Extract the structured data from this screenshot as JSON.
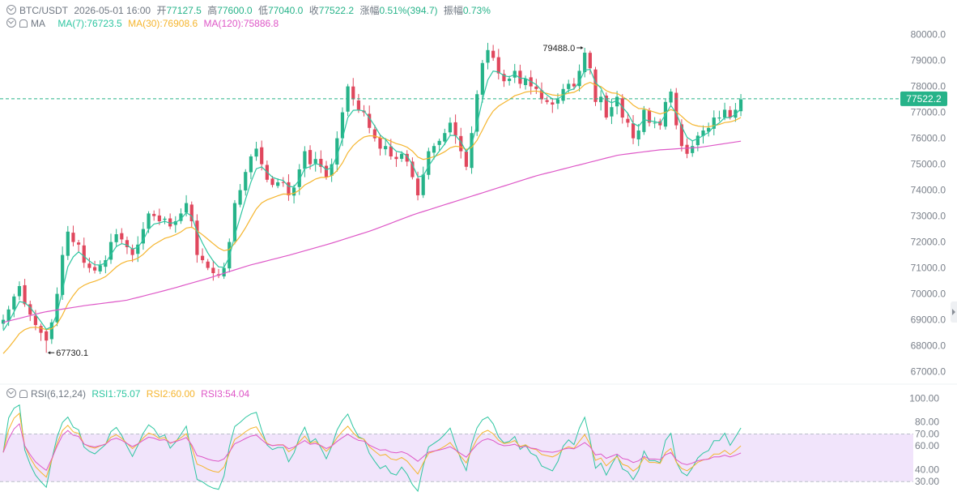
{
  "header": {
    "symbol": "BTC/USDT",
    "datetime": "2026-05-01 16:00",
    "open_label": "开",
    "open": "77127.5",
    "high_label": "高",
    "high": "77600.0",
    "low_label": "低",
    "low": "77040.0",
    "close_label": "收",
    "close": "77522.2",
    "change_label": "涨幅",
    "change": "0.51%(394.7)",
    "amplitude_label": "振幅",
    "amplitude": "0.73%"
  },
  "ma_legend": {
    "label": "MA",
    "ma7": "MA(7):76723.5",
    "ma30": "MA(30):76908.6",
    "ma120": "MA(120):75886.8"
  },
  "rsi_legend": {
    "label": "RSI(6,12,24)",
    "rsi1": "RSI1:75.07",
    "rsi2": "RSI2:60.00",
    "rsi3": "RSI3:54.04"
  },
  "colors": {
    "up": "#26b389",
    "down": "#e0475d",
    "ma7": "#2ec6a1",
    "ma30": "#f5b52e",
    "ma120": "#de57c7",
    "rsi1": "#2ec6a1",
    "rsi2": "#f5b52e",
    "rsi3": "#de57c7",
    "last_price_bg": "#26b389",
    "rsi_band": "#f1e4fb"
  },
  "chart_data": [
    {
      "type": "candlestick",
      "title": "",
      "y_ticks": [
        "80000.0",
        "79000.0",
        "78000.0",
        "77000.0",
        "76000.0",
        "75000.0",
        "74000.0",
        "73000.0",
        "72000.0",
        "71000.0",
        "70000.0",
        "69000.0",
        "68000.0",
        "67000.0"
      ],
      "ylim": [
        66800,
        80300
      ],
      "last_price": 77522.2,
      "last_price_label": "77522.2",
      "max_annotation": {
        "value": 79488.0,
        "label": "79488.0",
        "index": 108
      },
      "min_annotation": {
        "value": 67730.1,
        "label": "67730.1",
        "index": 8
      },
      "close": [
        69000,
        69400,
        69900,
        70300,
        69600,
        69200,
        68800,
        68500,
        68200,
        68900,
        70000,
        71500,
        72400,
        72000,
        71900,
        71200,
        71000,
        70900,
        71100,
        71300,
        72000,
        72300,
        72100,
        71800,
        71500,
        71900,
        72500,
        73100,
        73000,
        72800,
        72900,
        72600,
        72800,
        73100,
        73500,
        72800,
        71500,
        71300,
        71000,
        70800,
        70700,
        71000,
        72000,
        73500,
        74000,
        74700,
        75300,
        75600,
        75000,
        74400,
        74200,
        74300,
        74300,
        73800,
        74100,
        74800,
        75500,
        75000,
        75200,
        74900,
        74500,
        75000,
        76000,
        77000,
        78000,
        77500,
        77100,
        77000,
        76400,
        76000,
        75600,
        75700,
        75300,
        75200,
        75400,
        75100,
        74500,
        73800,
        74600,
        75500,
        75700,
        75900,
        76200,
        76600,
        76100,
        75500,
        74900,
        76200,
        77700,
        78900,
        79400,
        79100,
        78500,
        78200,
        78300,
        78600,
        78100,
        78300,
        78000,
        77900,
        77500,
        77400,
        77300,
        77500,
        77900,
        78100,
        78000,
        78600,
        79300,
        78700,
        77400,
        77600,
        76800,
        77200,
        77600,
        76800,
        76600,
        76000,
        76300,
        77100,
        76600,
        76600,
        76500,
        77400,
        77800,
        76500,
        75700,
        75400,
        75700,
        76100,
        76300,
        76400,
        76800,
        76800,
        77100,
        76800,
        77100,
        77500
      ],
      "ma7_start": 68300,
      "ma30_start": 67500,
      "ma120": [
        68900,
        69300,
        69550,
        69750,
        70150,
        70600,
        71100,
        71500,
        71950,
        72450,
        73050,
        73550,
        74050,
        74550,
        74950,
        75350,
        75550,
        75650,
        75886.8
      ],
      "ma120_note": "",
      "show_grid": false
    },
    {
      "type": "line",
      "title": "",
      "y_ticks": [
        "100.00",
        "80.00",
        "70.00",
        "60.00",
        "40.00",
        "30.00"
      ],
      "ylim": [
        22,
        105
      ],
      "band": [
        30,
        70
      ],
      "series": [
        {
          "name": "RSI1",
          "last": 75.07
        },
        {
          "name": "RSI2",
          "last": 60.0
        },
        {
          "name": "RSI3",
          "last": 54.04
        }
      ]
    }
  ]
}
